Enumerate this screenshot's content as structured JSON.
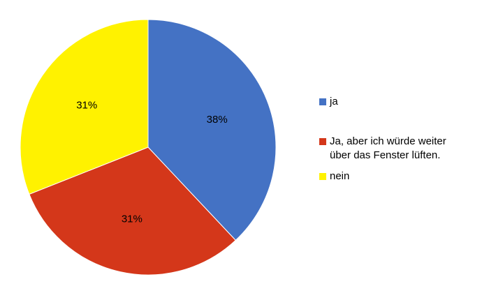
{
  "chart_data": {
    "type": "pie",
    "title": "",
    "start_angle_deg": 0,
    "direction": "clockwise",
    "legend_position": "right",
    "slices": [
      {
        "label": "ja",
        "value": 38,
        "value_label": "38%",
        "color": "#4472C4"
      },
      {
        "label": "Ja, aber ich würde weiter über das Fenster lüften.",
        "label_lines": [
          "Ja, aber ich würde weiter",
          "über das Fenster lüften."
        ],
        "value": 31,
        "value_label": "31%",
        "color": "#D4371A"
      },
      {
        "label": "nein",
        "value": 31,
        "value_label": "31%",
        "color": "#FFF200"
      }
    ]
  }
}
